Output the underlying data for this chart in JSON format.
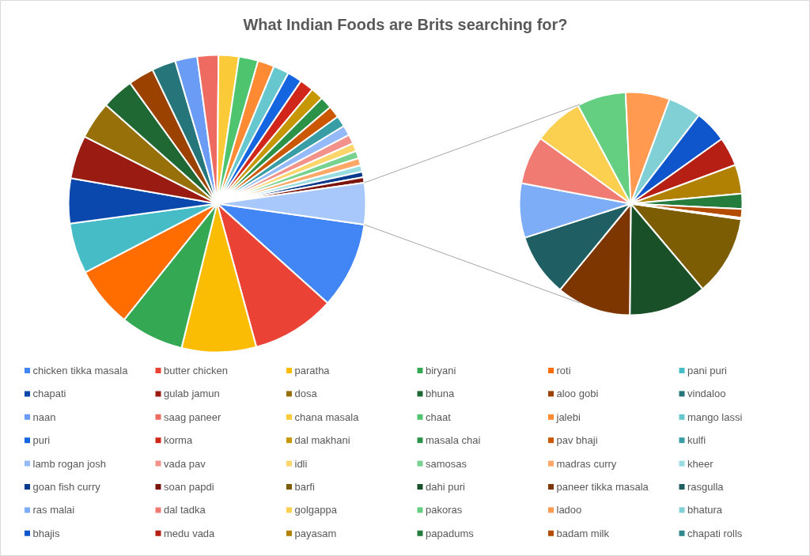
{
  "chart_data": [
    {
      "type": "pie",
      "title": "What Indian Foods are Brits searching for?",
      "legend": "bottom",
      "categories": [
        "chicken tikka masala",
        "butter chicken",
        "paratha",
        "biryani",
        "roti",
        "pani puri",
        "chapati",
        "gulab jamun",
        "dosa",
        "bhuna",
        "aloo gobi",
        "vindaloo",
        "naan",
        "saag paneer",
        "chana masala",
        "chaat",
        "jalebi",
        "mango lassi",
        "puri",
        "korma",
        "dal makhani",
        "masala chai",
        "pav bhaji",
        "kulfi",
        "lamb rogan josh",
        "vada pav",
        "idli",
        "samosas",
        "madras curry",
        "kheer",
        "goan fish curry",
        "soan papdi",
        null
      ],
      "values": [
        9.4,
        9.1,
        8.1,
        6.9,
        6.6,
        5.5,
        4.9,
        4.7,
        4.1,
        3.5,
        2.8,
        2.6,
        2.4,
        2.3,
        2.2,
        2.1,
        1.8,
        1.7,
        1.6,
        1.5,
        1.4,
        1.3,
        1.3,
        1.2,
        1.1,
        1.0,
        0.9,
        0.8,
        0.8,
        0.7,
        0.6,
        0.6,
        4.5
      ],
      "colors": [
        "#4285f4",
        "#ea4335",
        "#fbbc04",
        "#34a853",
        "#ff6d01",
        "#46bdc6",
        "#0b48ae",
        "#991b12",
        "#97700a",
        "#1f6733",
        "#9c4200",
        "#25757a",
        "#6a9cf6",
        "#ee6b61",
        "#fbca39",
        "#4fc46f",
        "#ff8a34",
        "#67c7cf",
        "#1565e0",
        "#d1261a",
        "#c69700",
        "#2c9248",
        "#cc5701",
        "#389da5",
        "#94baf9",
        "#f2928b",
        "#fcd66a",
        "#77d18f",
        "#ffa766",
        "#98dce0",
        "#0a3a8c",
        "#7c150e",
        "#a8c7fa"
      ]
    },
    {
      "type": "pie",
      "legend": "bottom",
      "categories": [
        "barfi",
        "dahi puri",
        "paneer tikka masala",
        "rasgulla",
        "ras malai",
        "dal tadka",
        "golgappa",
        "pakoras",
        "ladoo",
        "bhatura",
        "bhajis",
        "medu vada",
        "payasam",
        "papadums",
        "badam milk",
        "chapati rolls"
      ],
      "values": [
        11.6,
        11.3,
        10.8,
        9.1,
        7.9,
        7.0,
        7.2,
        7.1,
        6.4,
        4.8,
        4.7,
        4.2,
        4.2,
        2.2,
        1.3,
        0.2
      ],
      "colors": [
        "#7d5d04",
        "#195027",
        "#7e3600",
        "#1f5f63",
        "#7dadf7",
        "#f07b72",
        "#fbcf50",
        "#64ce81",
        "#ff9a50",
        "#80d0d6",
        "#0f56cc",
        "#b51f14",
        "#b08103",
        "#257d3d",
        "#b34c01",
        "#32888f"
      ]
    }
  ]
}
